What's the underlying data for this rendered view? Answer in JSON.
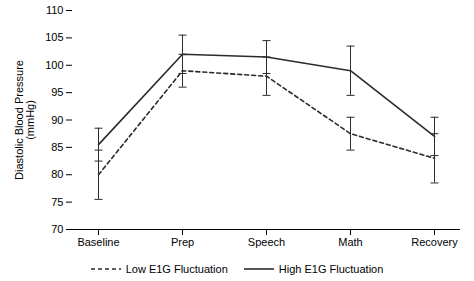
{
  "chart_data": {
    "type": "line",
    "categories": [
      "Baseline",
      "Prep",
      "Speech",
      "Math",
      "Recovery"
    ],
    "series": [
      {
        "name": "High E1G Fluctuation",
        "color": "#2b2b2b",
        "line_style": "solid",
        "values": [
          85.5,
          102.0,
          101.5,
          99.0,
          87.0
        ],
        "errors": [
          3.0,
          3.5,
          3.0,
          4.5,
          3.5
        ]
      },
      {
        "name": "Low E1G Fluctuation",
        "color": "#2b2b2b",
        "line_style": "dashed",
        "values": [
          80.0,
          99.0,
          98.0,
          87.5,
          83.0
        ],
        "errors": [
          4.5,
          3.0,
          3.5,
          3.0,
          4.5
        ]
      }
    ],
    "ylabel": "Diastolic Blood Pressure\n(mmHg)",
    "ylim": [
      70,
      110
    ],
    "yticks": [
      70,
      75,
      80,
      85,
      90,
      95,
      100,
      105,
      110
    ],
    "grid": false,
    "legend": "bottom"
  }
}
